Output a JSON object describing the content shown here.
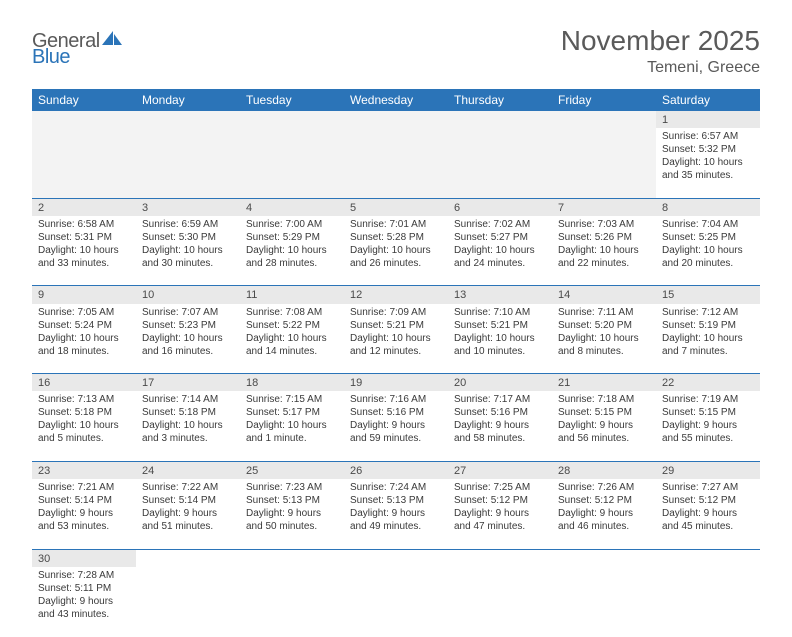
{
  "logo": {
    "part1": "General",
    "part2": "Blue"
  },
  "title": "November 2025",
  "location": "Temeni, Greece",
  "colors": {
    "header_bg": "#2b74b8",
    "header_text": "#ffffff",
    "daynum_bg": "#e9e9e9",
    "blank_bg": "#f3f3f3",
    "border": "#2b74b8",
    "text": "#3a3a3a",
    "title_text": "#5a5a5a"
  },
  "dayHeaders": [
    "Sunday",
    "Monday",
    "Tuesday",
    "Wednesday",
    "Thursday",
    "Friday",
    "Saturday"
  ],
  "weeks": [
    [
      null,
      null,
      null,
      null,
      null,
      null,
      {
        "n": "1",
        "sunrise": "Sunrise: 6:57 AM",
        "sunset": "Sunset: 5:32 PM",
        "daylight": "Daylight: 10 hours and 35 minutes."
      }
    ],
    [
      {
        "n": "2",
        "sunrise": "Sunrise: 6:58 AM",
        "sunset": "Sunset: 5:31 PM",
        "daylight": "Daylight: 10 hours and 33 minutes."
      },
      {
        "n": "3",
        "sunrise": "Sunrise: 6:59 AM",
        "sunset": "Sunset: 5:30 PM",
        "daylight": "Daylight: 10 hours and 30 minutes."
      },
      {
        "n": "4",
        "sunrise": "Sunrise: 7:00 AM",
        "sunset": "Sunset: 5:29 PM",
        "daylight": "Daylight: 10 hours and 28 minutes."
      },
      {
        "n": "5",
        "sunrise": "Sunrise: 7:01 AM",
        "sunset": "Sunset: 5:28 PM",
        "daylight": "Daylight: 10 hours and 26 minutes."
      },
      {
        "n": "6",
        "sunrise": "Sunrise: 7:02 AM",
        "sunset": "Sunset: 5:27 PM",
        "daylight": "Daylight: 10 hours and 24 minutes."
      },
      {
        "n": "7",
        "sunrise": "Sunrise: 7:03 AM",
        "sunset": "Sunset: 5:26 PM",
        "daylight": "Daylight: 10 hours and 22 minutes."
      },
      {
        "n": "8",
        "sunrise": "Sunrise: 7:04 AM",
        "sunset": "Sunset: 5:25 PM",
        "daylight": "Daylight: 10 hours and 20 minutes."
      }
    ],
    [
      {
        "n": "9",
        "sunrise": "Sunrise: 7:05 AM",
        "sunset": "Sunset: 5:24 PM",
        "daylight": "Daylight: 10 hours and 18 minutes."
      },
      {
        "n": "10",
        "sunrise": "Sunrise: 7:07 AM",
        "sunset": "Sunset: 5:23 PM",
        "daylight": "Daylight: 10 hours and 16 minutes."
      },
      {
        "n": "11",
        "sunrise": "Sunrise: 7:08 AM",
        "sunset": "Sunset: 5:22 PM",
        "daylight": "Daylight: 10 hours and 14 minutes."
      },
      {
        "n": "12",
        "sunrise": "Sunrise: 7:09 AM",
        "sunset": "Sunset: 5:21 PM",
        "daylight": "Daylight: 10 hours and 12 minutes."
      },
      {
        "n": "13",
        "sunrise": "Sunrise: 7:10 AM",
        "sunset": "Sunset: 5:21 PM",
        "daylight": "Daylight: 10 hours and 10 minutes."
      },
      {
        "n": "14",
        "sunrise": "Sunrise: 7:11 AM",
        "sunset": "Sunset: 5:20 PM",
        "daylight": "Daylight: 10 hours and 8 minutes."
      },
      {
        "n": "15",
        "sunrise": "Sunrise: 7:12 AM",
        "sunset": "Sunset: 5:19 PM",
        "daylight": "Daylight: 10 hours and 7 minutes."
      }
    ],
    [
      {
        "n": "16",
        "sunrise": "Sunrise: 7:13 AM",
        "sunset": "Sunset: 5:18 PM",
        "daylight": "Daylight: 10 hours and 5 minutes."
      },
      {
        "n": "17",
        "sunrise": "Sunrise: 7:14 AM",
        "sunset": "Sunset: 5:18 PM",
        "daylight": "Daylight: 10 hours and 3 minutes."
      },
      {
        "n": "18",
        "sunrise": "Sunrise: 7:15 AM",
        "sunset": "Sunset: 5:17 PM",
        "daylight": "Daylight: 10 hours and 1 minute."
      },
      {
        "n": "19",
        "sunrise": "Sunrise: 7:16 AM",
        "sunset": "Sunset: 5:16 PM",
        "daylight": "Daylight: 9 hours and 59 minutes."
      },
      {
        "n": "20",
        "sunrise": "Sunrise: 7:17 AM",
        "sunset": "Sunset: 5:16 PM",
        "daylight": "Daylight: 9 hours and 58 minutes."
      },
      {
        "n": "21",
        "sunrise": "Sunrise: 7:18 AM",
        "sunset": "Sunset: 5:15 PM",
        "daylight": "Daylight: 9 hours and 56 minutes."
      },
      {
        "n": "22",
        "sunrise": "Sunrise: 7:19 AM",
        "sunset": "Sunset: 5:15 PM",
        "daylight": "Daylight: 9 hours and 55 minutes."
      }
    ],
    [
      {
        "n": "23",
        "sunrise": "Sunrise: 7:21 AM",
        "sunset": "Sunset: 5:14 PM",
        "daylight": "Daylight: 9 hours and 53 minutes."
      },
      {
        "n": "24",
        "sunrise": "Sunrise: 7:22 AM",
        "sunset": "Sunset: 5:14 PM",
        "daylight": "Daylight: 9 hours and 51 minutes."
      },
      {
        "n": "25",
        "sunrise": "Sunrise: 7:23 AM",
        "sunset": "Sunset: 5:13 PM",
        "daylight": "Daylight: 9 hours and 50 minutes."
      },
      {
        "n": "26",
        "sunrise": "Sunrise: 7:24 AM",
        "sunset": "Sunset: 5:13 PM",
        "daylight": "Daylight: 9 hours and 49 minutes."
      },
      {
        "n": "27",
        "sunrise": "Sunrise: 7:25 AM",
        "sunset": "Sunset: 5:12 PM",
        "daylight": "Daylight: 9 hours and 47 minutes."
      },
      {
        "n": "28",
        "sunrise": "Sunrise: 7:26 AM",
        "sunset": "Sunset: 5:12 PM",
        "daylight": "Daylight: 9 hours and 46 minutes."
      },
      {
        "n": "29",
        "sunrise": "Sunrise: 7:27 AM",
        "sunset": "Sunset: 5:12 PM",
        "daylight": "Daylight: 9 hours and 45 minutes."
      }
    ],
    [
      {
        "n": "30",
        "sunrise": "Sunrise: 7:28 AM",
        "sunset": "Sunset: 5:11 PM",
        "daylight": "Daylight: 9 hours and 43 minutes."
      },
      null,
      null,
      null,
      null,
      null,
      null
    ]
  ]
}
